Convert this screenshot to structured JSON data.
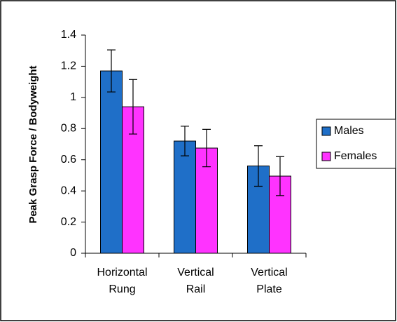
{
  "chart_data": {
    "type": "bar",
    "y_label": "Peak Grasp Force / Bodyweight",
    "categories": [
      "Horizontal\nRung",
      "Vertical\nRail",
      "Vertical\nPlate"
    ],
    "series": [
      {
        "name": "Males",
        "color": "#1f6fc8",
        "values": [
          1.17,
          0.72,
          0.56
        ],
        "errors": [
          0.135,
          0.095,
          0.13
        ]
      },
      {
        "name": "Females",
        "color": "#ff33ff",
        "values": [
          0.94,
          0.675,
          0.495
        ],
        "errors": [
          0.175,
          0.12,
          0.125
        ]
      }
    ],
    "ylim": [
      0,
      1.4
    ],
    "yticks": [
      0,
      0.2,
      0.4,
      0.6,
      0.8,
      1,
      1.2,
      1.4
    ],
    "legend": "right"
  }
}
